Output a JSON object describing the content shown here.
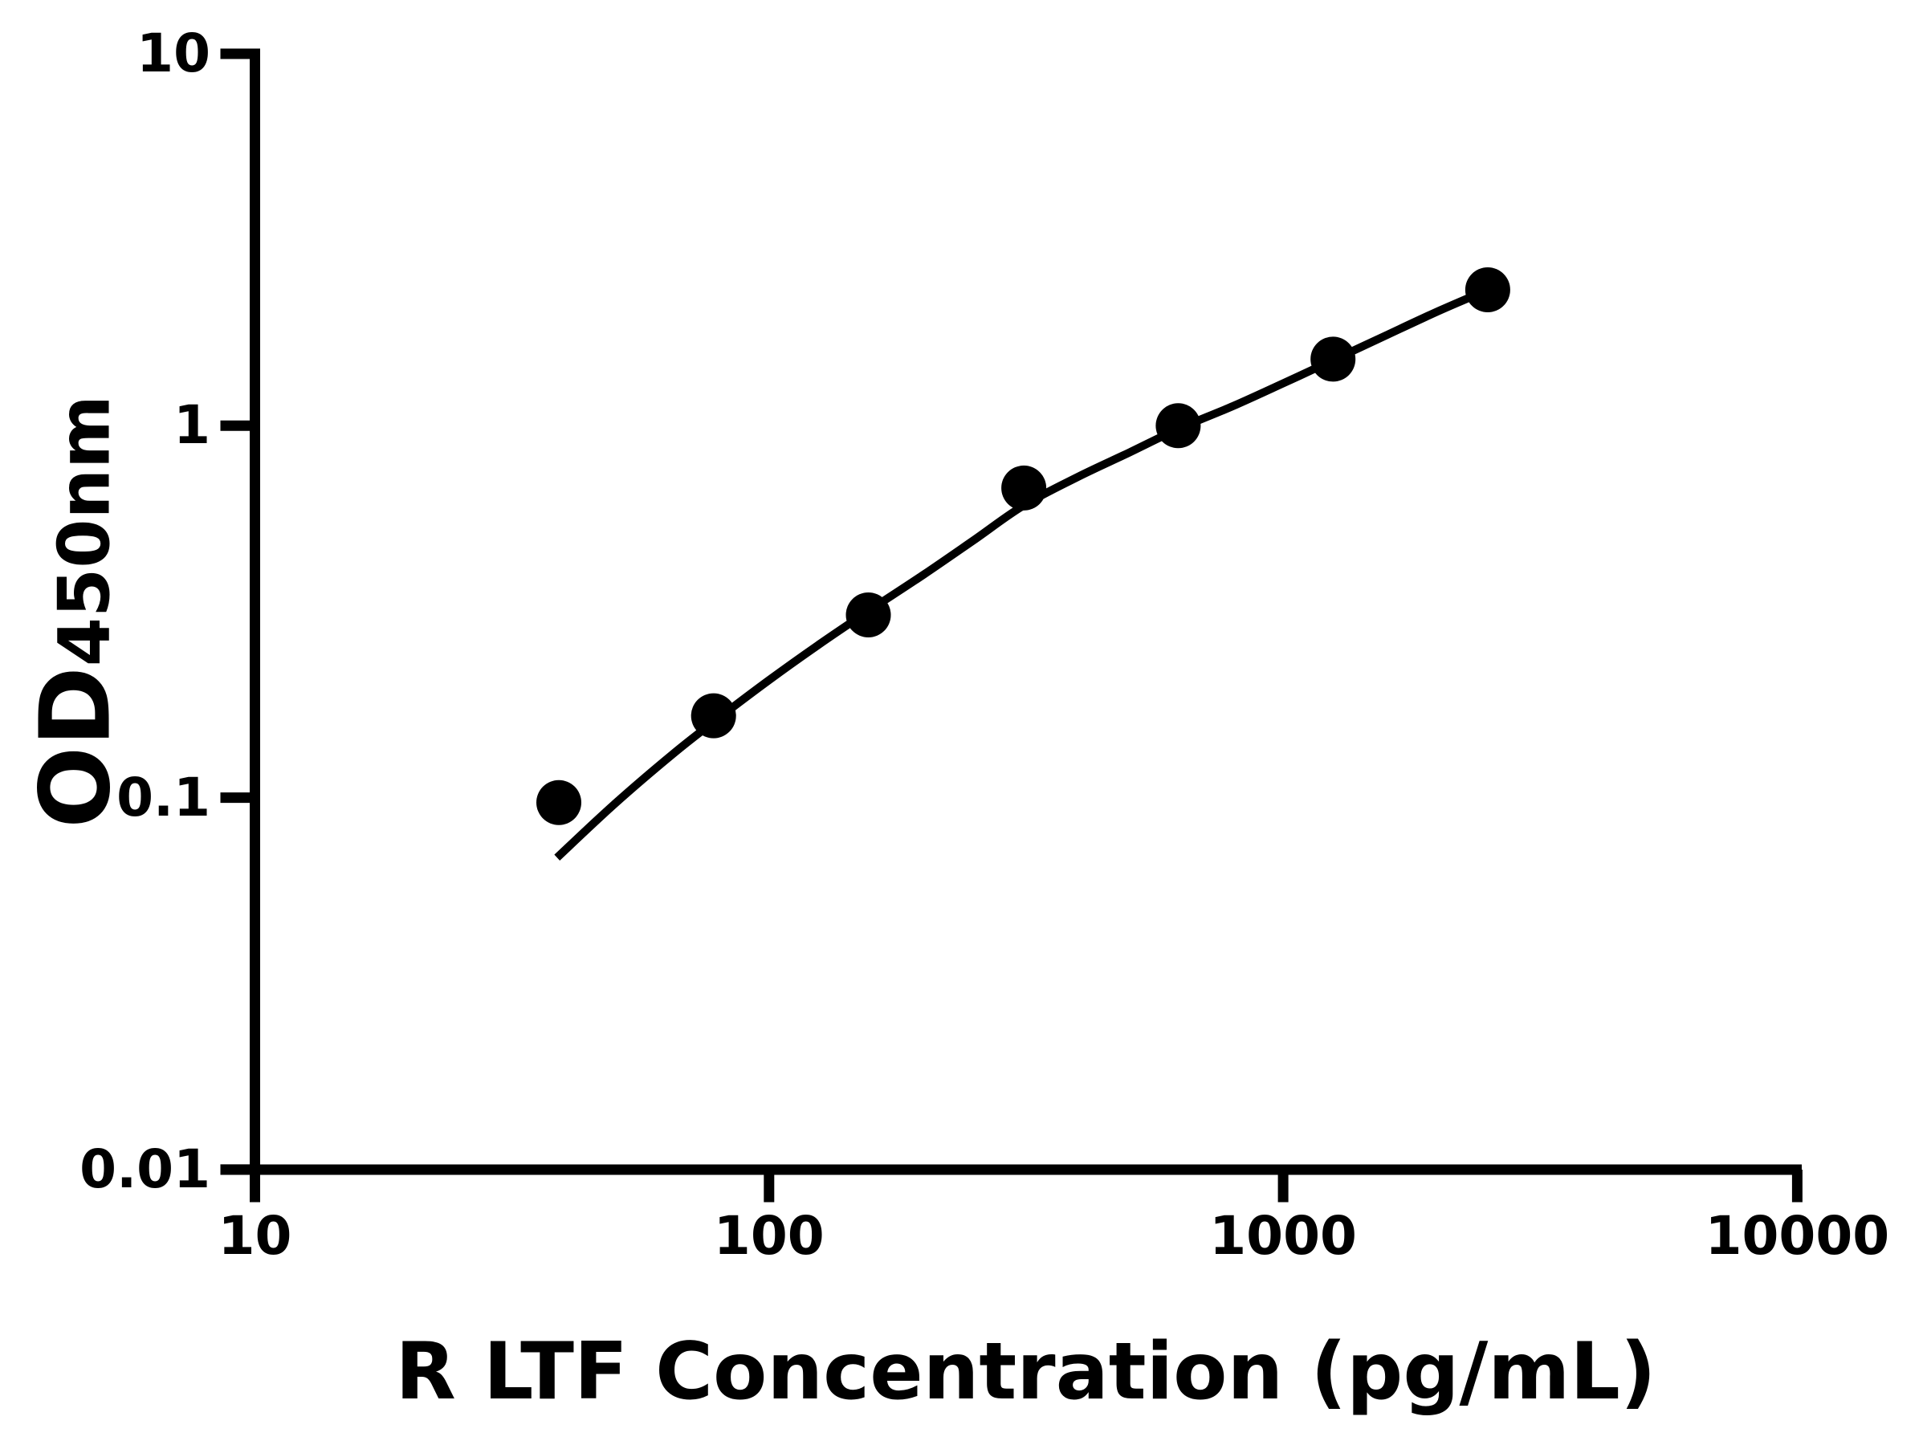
{
  "page": {
    "background": "#ffffff"
  },
  "chart_data": {
    "type": "scatter",
    "title": "",
    "xlabel": "R LTF Concentration (pg/mL)",
    "ylabel": "OD450nm",
    "ylabel_parts": {
      "main": "OD",
      "sub": "450nm"
    },
    "x_scale": "log",
    "y_scale": "log",
    "xlim": [
      10,
      10000
    ],
    "ylim": [
      0.01,
      10
    ],
    "grid": false,
    "legend": "none",
    "colors": {
      "marker": "#000000",
      "line": "#000000",
      "axis": "#000000",
      "text": "#000000",
      "background": "#ffffff"
    },
    "x_ticks": [
      {
        "value": 10,
        "label": "10"
      },
      {
        "value": 100,
        "label": "100"
      },
      {
        "value": 1000,
        "label": "1000"
      },
      {
        "value": 10000,
        "label": "10000"
      }
    ],
    "y_ticks": [
      {
        "value": 10,
        "label": "10"
      },
      {
        "value": 1,
        "label": "1"
      },
      {
        "value": 0.1,
        "label": "0.1"
      },
      {
        "value": 0.01,
        "label": "0.01"
      }
    ],
    "series": [
      {
        "name": "standard curve data points",
        "marker": "filled-circle",
        "points": [
          {
            "x": 39,
            "y": 0.097
          },
          {
            "x": 78,
            "y": 0.166
          },
          {
            "x": 156,
            "y": 0.31
          },
          {
            "x": 313,
            "y": 0.68
          },
          {
            "x": 625,
            "y": 1.0
          },
          {
            "x": 1250,
            "y": 1.51
          },
          {
            "x": 2500,
            "y": 2.32
          }
        ]
      }
    ],
    "fit_curve": {
      "name": "fitted standard curve line",
      "points": [
        [
          38.7,
          0.069
        ],
        [
          50,
          0.096
        ],
        [
          65,
          0.131
        ],
        [
          78.1,
          0.16
        ],
        [
          100,
          0.207
        ],
        [
          125,
          0.258
        ],
        [
          156.3,
          0.318
        ],
        [
          200,
          0.398
        ],
        [
          250,
          0.492
        ],
        [
          312.5,
          0.61
        ],
        [
          400,
          0.73
        ],
        [
          500,
          0.845
        ],
        [
          625,
          0.98
        ],
        [
          800,
          1.13
        ],
        [
          1000,
          1.3
        ],
        [
          1250,
          1.5
        ],
        [
          1600,
          1.76
        ],
        [
          2000,
          2.03
        ],
        [
          2500,
          2.32
        ]
      ]
    }
  }
}
